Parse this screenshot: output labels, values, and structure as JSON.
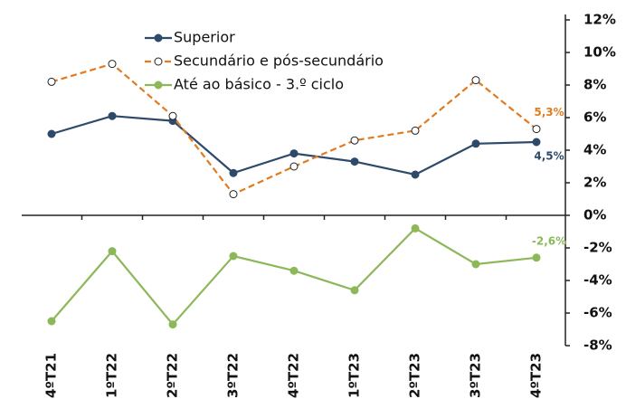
{
  "chart_data": {
    "type": "line",
    "categories": [
      "4ºT21",
      "1ºT22",
      "2ºT22",
      "3ºT22",
      "4ºT22",
      "1ºT23",
      "2ºT23",
      "3ºT23",
      "4ºT23"
    ],
    "series": [
      {
        "name": "Superior",
        "color": "#2e4a6b",
        "dashed": false,
        "marker_fill": "#2e4a6b",
        "values": [
          5.0,
          6.1,
          5.8,
          2.6,
          3.8,
          3.3,
          2.5,
          4.4,
          4.5
        ],
        "value_labels": [
          null,
          null,
          null,
          null,
          null,
          null,
          null,
          null,
          "4,5%"
        ]
      },
      {
        "name": "Secundário e pós-secundário",
        "color": "#e07b20",
        "dashed": true,
        "marker_fill": "#ffffff",
        "values": [
          8.2,
          9.3,
          6.1,
          1.3,
          3.0,
          4.6,
          5.2,
          8.3,
          5.3
        ],
        "value_labels": [
          null,
          null,
          null,
          null,
          null,
          null,
          null,
          null,
          "5,3%"
        ]
      },
      {
        "name": "Até ao básico - 3.º ciclo",
        "color": "#8db85a",
        "dashed": false,
        "marker_fill": "#8db85a",
        "values": [
          -6.5,
          -2.2,
          -6.7,
          -2.5,
          -3.4,
          -4.6,
          -0.8,
          -3.0,
          -2.6
        ],
        "value_labels": [
          null,
          null,
          null,
          null,
          null,
          null,
          null,
          null,
          "-2,6%"
        ]
      }
    ],
    "ylim": [
      -8,
      12
    ],
    "yticks": [
      {
        "value": -8,
        "label": "-8%"
      },
      {
        "value": -6,
        "label": "-6%"
      },
      {
        "value": -4,
        "label": "-4%"
      },
      {
        "value": -2,
        "label": "-2%"
      },
      {
        "value": 0,
        "label": "0%"
      },
      {
        "value": 2,
        "label": "2%"
      },
      {
        "value": 4,
        "label": "4%"
      },
      {
        "value": 6,
        "label": "6%"
      },
      {
        "value": 8,
        "label": "8%"
      },
      {
        "value": 10,
        "label": "10%"
      },
      {
        "value": 12,
        "label": "12%"
      }
    ],
    "y_axis_side": "right",
    "legend": "top-left"
  }
}
